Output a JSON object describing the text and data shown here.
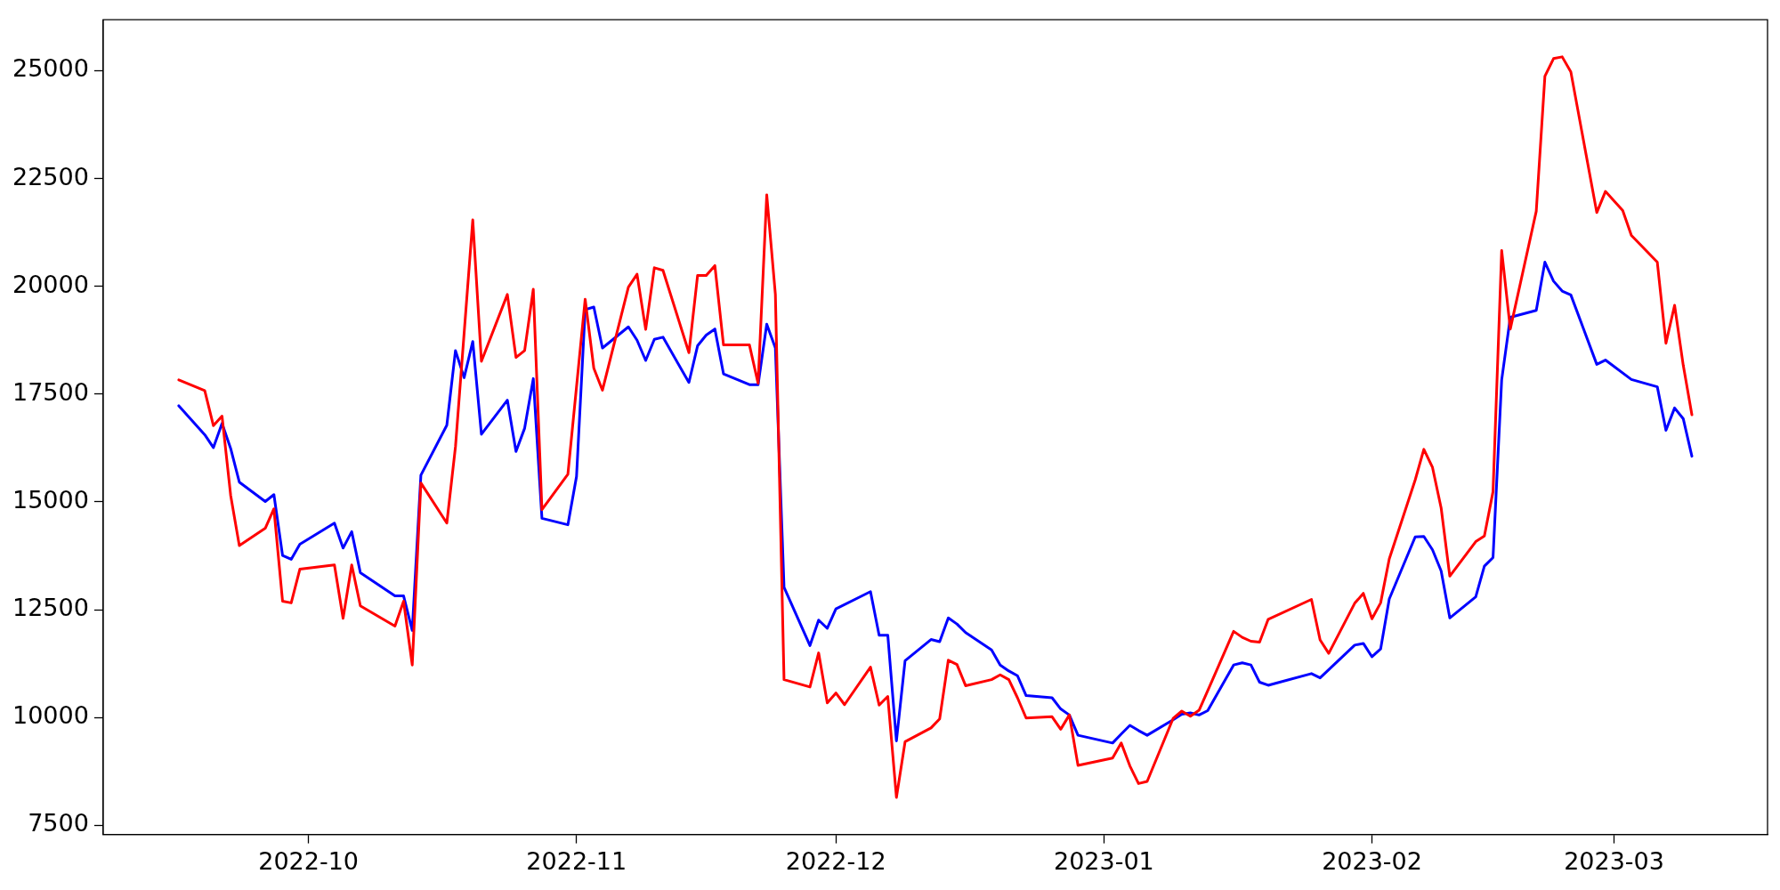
{
  "chart_data": {
    "type": "line",
    "xlim": [
      "2022-09-07T06:00",
      "2023-03-18T18:00"
    ],
    "xticks": [
      {
        "value": "2022-10-01",
        "label": "2022-10"
      },
      {
        "value": "2022-11-01",
        "label": "2022-11"
      },
      {
        "value": "2022-12-01",
        "label": "2022-12"
      },
      {
        "value": "2023-01-01",
        "label": "2023-01"
      },
      {
        "value": "2023-02-01",
        "label": "2023-02"
      },
      {
        "value": "2023-03-01",
        "label": "2023-03"
      }
    ],
    "ylim": [
      7290,
      26180
    ],
    "yticks": [
      7500,
      10000,
      12500,
      15000,
      17500,
      20000,
      22500,
      25000
    ],
    "grid": false,
    "legend": false,
    "marker": "none",
    "line_style": "solid",
    "series": [
      {
        "color": "#ff0000",
        "x": [
          "2022-09-16",
          "2022-09-19",
          "2022-09-20",
          "2022-09-21",
          "2022-09-22",
          "2022-09-23",
          "2022-09-26",
          "2022-09-27",
          "2022-09-28",
          "2022-09-29",
          "2022-09-30",
          "2022-10-04",
          "2022-10-05",
          "2022-10-06",
          "2022-10-07",
          "2022-10-11",
          "2022-10-12",
          "2022-10-13",
          "2022-10-14",
          "2022-10-17",
          "2022-10-18",
          "2022-10-20",
          "2022-10-21",
          "2022-10-24",
          "2022-10-25",
          "2022-10-26",
          "2022-10-27",
          "2022-10-28",
          "2022-10-31",
          "2022-11-02",
          "2022-11-03",
          "2022-11-04",
          "2022-11-07",
          "2022-11-08",
          "2022-11-09",
          "2022-11-10",
          "2022-11-11",
          "2022-11-14",
          "2022-11-15",
          "2022-11-16",
          "2022-11-17",
          "2022-11-18",
          "2022-11-21",
          "2022-11-22",
          "2022-11-23",
          "2022-11-24",
          "2022-11-25",
          "2022-11-28",
          "2022-11-29",
          "2022-11-30",
          "2022-12-01",
          "2022-12-02",
          "2022-12-05",
          "2022-12-06",
          "2022-12-07",
          "2022-12-08",
          "2022-12-09",
          "2022-12-12",
          "2022-12-13",
          "2022-12-14",
          "2022-12-15",
          "2022-12-16",
          "2022-12-19",
          "2022-12-20",
          "2022-12-21",
          "2022-12-22",
          "2022-12-23",
          "2022-12-26",
          "2022-12-27",
          "2022-12-28",
          "2022-12-29",
          "2023-01-02",
          "2023-01-03",
          "2023-01-04",
          "2023-01-05",
          "2023-01-06",
          "2023-01-09",
          "2023-01-10",
          "2023-01-11",
          "2023-01-12",
          "2023-01-13",
          "2023-01-16",
          "2023-01-17",
          "2023-01-18",
          "2023-01-19",
          "2023-01-20",
          "2023-01-25",
          "2023-01-26",
          "2023-01-27",
          "2023-01-30",
          "2023-01-31",
          "2023-02-01",
          "2023-02-02",
          "2023-02-03",
          "2023-02-06",
          "2023-02-07",
          "2023-02-08",
          "2023-02-09",
          "2023-02-10",
          "2023-02-13",
          "2023-02-14",
          "2023-02-15",
          "2023-02-16",
          "2023-02-17",
          "2023-02-20",
          "2023-02-21",
          "2023-02-22",
          "2023-02-23",
          "2023-02-24",
          "2023-02-27",
          "2023-02-28",
          "2023-03-02",
          "2023-03-03",
          "2023-03-06",
          "2023-03-07",
          "2023-03-08",
          "2023-03-09",
          "2023-03-10"
        ],
        "values": [
          17830,
          17580,
          16770,
          16990,
          15150,
          13990,
          14390,
          14840,
          12700,
          12660,
          13440,
          13540,
          12300,
          13540,
          12590,
          12120,
          12700,
          11220,
          15440,
          14510,
          16280,
          21540,
          18260,
          19810,
          18350,
          18510,
          19930,
          14820,
          15640,
          19700,
          18100,
          17590,
          19980,
          20280,
          19000,
          20430,
          20370,
          18460,
          20250,
          20250,
          20480,
          18640,
          18640,
          17750,
          22120,
          19810,
          10880,
          10710,
          11500,
          10340,
          10570,
          10300,
          11170,
          10290,
          10490,
          8150,
          9440,
          9760,
          9970,
          11330,
          11230,
          10740,
          10880,
          10990,
          10880,
          10460,
          9990,
          10020,
          9730,
          10060,
          8890,
          9060,
          9410,
          8880,
          8470,
          8520,
          9980,
          10150,
          10030,
          10170,
          10620,
          12000,
          11860,
          11770,
          11750,
          12280,
          12740,
          11800,
          11490,
          12650,
          12880,
          12290,
          12660,
          13680,
          15510,
          16220,
          15800,
          14860,
          13280,
          14080,
          14210,
          15240,
          20830,
          19010,
          21740,
          24870,
          25280,
          25320,
          24970,
          21710,
          22200,
          21760,
          21180,
          20560,
          18680,
          19560,
          18170,
          17020
        ]
      },
      {
        "color": "#0000ff",
        "x": [
          "2022-09-16",
          "2022-09-19",
          "2022-09-20",
          "2022-09-21",
          "2022-09-22",
          "2022-09-23",
          "2022-09-26",
          "2022-09-27",
          "2022-09-28",
          "2022-09-29",
          "2022-09-30",
          "2022-10-04",
          "2022-10-05",
          "2022-10-06",
          "2022-10-07",
          "2022-10-11",
          "2022-10-12",
          "2022-10-13",
          "2022-10-14",
          "2022-10-17",
          "2022-10-18",
          "2022-10-19",
          "2022-10-20",
          "2022-10-21",
          "2022-10-24",
          "2022-10-25",
          "2022-10-26",
          "2022-10-27",
          "2022-10-28",
          "2022-10-31",
          "2022-11-01",
          "2022-11-02",
          "2022-11-03",
          "2022-11-04",
          "2022-11-07",
          "2022-11-08",
          "2022-11-09",
          "2022-11-10",
          "2022-11-11",
          "2022-11-14",
          "2022-11-15",
          "2022-11-16",
          "2022-11-17",
          "2022-11-18",
          "2022-11-21",
          "2022-11-22",
          "2022-11-23",
          "2022-11-24",
          "2022-11-25",
          "2022-11-28",
          "2022-11-29",
          "2022-11-30",
          "2022-12-01",
          "2022-12-05",
          "2022-12-06",
          "2022-12-07",
          "2022-12-08",
          "2022-12-09",
          "2022-12-12",
          "2022-12-13",
          "2022-12-14",
          "2022-12-15",
          "2022-12-16",
          "2022-12-19",
          "2022-12-20",
          "2022-12-21",
          "2022-12-22",
          "2022-12-23",
          "2022-12-26",
          "2022-12-27",
          "2022-12-28",
          "2022-12-29",
          "2023-01-02",
          "2023-01-03",
          "2023-01-04",
          "2023-01-05",
          "2023-01-06",
          "2023-01-09",
          "2023-01-10",
          "2023-01-11",
          "2023-01-12",
          "2023-01-13",
          "2023-01-16",
          "2023-01-17",
          "2023-01-18",
          "2023-01-19",
          "2023-01-20",
          "2023-01-25",
          "2023-01-26",
          "2023-01-30",
          "2023-01-31",
          "2023-02-01",
          "2023-02-02",
          "2023-02-03",
          "2023-02-06",
          "2023-02-07",
          "2023-02-08",
          "2023-02-09",
          "2023-02-10",
          "2023-02-13",
          "2023-02-14",
          "2023-02-15",
          "2023-02-16",
          "2023-02-17",
          "2023-02-20",
          "2023-02-21",
          "2023-02-22",
          "2023-02-23",
          "2023-02-24",
          "2023-02-27",
          "2023-02-28",
          "2023-03-03",
          "2023-03-06",
          "2023-03-07",
          "2023-03-08",
          "2023-03-09",
          "2023-03-10"
        ],
        "values": [
          17230,
          16560,
          16260,
          16820,
          16240,
          15460,
          15010,
          15170,
          13760,
          13670,
          14020,
          14510,
          13930,
          14310,
          13360,
          12820,
          12820,
          12020,
          15620,
          16780,
          18510,
          17880,
          18720,
          16570,
          17360,
          16170,
          16710,
          17860,
          14620,
          14470,
          15590,
          19460,
          19520,
          18570,
          19060,
          18750,
          18280,
          18770,
          18820,
          17770,
          18620,
          18870,
          19010,
          17970,
          17720,
          17720,
          19120,
          18570,
          13020,
          11670,
          12260,
          12070,
          12520,
          12920,
          11910,
          11910,
          9460,
          11320,
          11810,
          11760,
          12310,
          12170,
          11970,
          11570,
          11220,
          11080,
          10970,
          10510,
          10460,
          10200,
          10060,
          9590,
          9410,
          9620,
          9820,
          9700,
          9590,
          9950,
          10080,
          10110,
          10060,
          10160,
          11220,
          11270,
          11220,
          10820,
          10750,
          11020,
          10920,
          11680,
          11720,
          11410,
          11590,
          12750,
          14190,
          14200,
          13890,
          13400,
          12310,
          12800,
          13510,
          13710,
          17830,
          19280,
          19440,
          20560,
          20120,
          19890,
          19800,
          18190,
          18290,
          17840,
          17670,
          16660,
          17180,
          16930,
          16060
        ]
      }
    ]
  }
}
